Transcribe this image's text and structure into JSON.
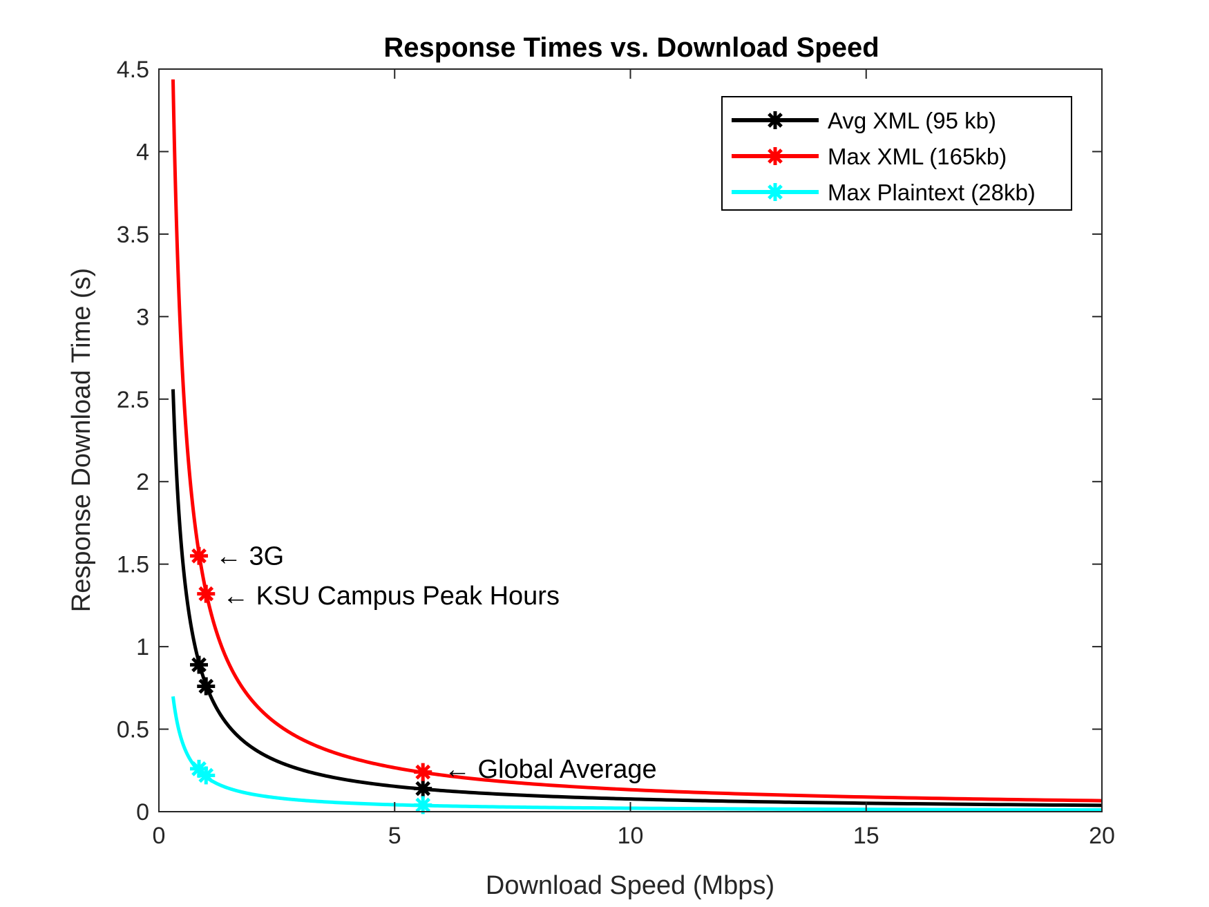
{
  "chart_data": {
    "type": "line",
    "title": "Response Times vs. Download Speed",
    "xlabel": "Download Speed (Mbps)",
    "ylabel": "Response Download Time (s)",
    "xlim": [
      0,
      20
    ],
    "ylim": [
      0,
      4.5
    ],
    "x_range_plotted": [
      0.3,
      20
    ],
    "x_ticks": [
      0,
      5,
      10,
      15,
      20
    ],
    "x_tick_labels": [
      "0",
      "5",
      "10",
      "15",
      "20"
    ],
    "y_ticks": [
      0,
      0.5,
      1,
      1.5,
      2,
      2.5,
      3,
      3.5,
      4,
      4.5
    ],
    "y_tick_labels": [
      "0",
      "0.5",
      "1",
      "1.5",
      "2",
      "2.5",
      "3",
      "3.5",
      "4",
      "4.5"
    ],
    "grid": false,
    "legend_position": "top-right",
    "marker_x": [
      0.85,
      1.0,
      5.6
    ],
    "series": [
      {
        "name": "Avg XML (95 kb)",
        "color": "#000000",
        "size_kb": 95,
        "x": [
          0.3,
          0.5,
          0.85,
          1,
          2,
          3,
          5.6,
          10,
          15,
          20
        ],
        "y": [
          2.53,
          1.52,
          0.89,
          0.76,
          0.38,
          0.25,
          0.14,
          0.08,
          0.05,
          0.04
        ],
        "markers": [
          {
            "x": 0.85,
            "y": 0.89
          },
          {
            "x": 1.0,
            "y": 0.76
          },
          {
            "x": 5.6,
            "y": 0.14
          }
        ]
      },
      {
        "name": "Max XML (165kb)",
        "color": "#ff0000",
        "size_kb": 165,
        "x": [
          0.3,
          0.5,
          0.85,
          1,
          2,
          3,
          5.6,
          10,
          15,
          20
        ],
        "y": [
          4.4,
          2.64,
          1.55,
          1.32,
          0.66,
          0.44,
          0.24,
          0.13,
          0.09,
          0.07
        ],
        "markers": [
          {
            "x": 0.85,
            "y": 1.55
          },
          {
            "x": 1.0,
            "y": 1.32
          },
          {
            "x": 5.6,
            "y": 0.24
          }
        ]
      },
      {
        "name": "Max Plaintext (28kb)",
        "color": "#00ffff",
        "size_kb": 28,
        "x": [
          0.3,
          0.5,
          0.85,
          1,
          2,
          3,
          5.6,
          10,
          15,
          20
        ],
        "y": [
          0.75,
          0.45,
          0.26,
          0.22,
          0.11,
          0.07,
          0.04,
          0.02,
          0.01,
          0.01
        ],
        "markers": [
          {
            "x": 0.85,
            "y": 0.26
          },
          {
            "x": 1.0,
            "y": 0.22
          },
          {
            "x": 5.6,
            "y": 0.04
          }
        ]
      }
    ],
    "annotations": [
      {
        "text": "← 3G",
        "x": 1.2,
        "y": 1.55
      },
      {
        "text": "← KSU Campus Peak Hours",
        "x": 1.35,
        "y": 1.31
      },
      {
        "text": "← Global Average",
        "x": 6.05,
        "y": 0.26
      }
    ]
  }
}
